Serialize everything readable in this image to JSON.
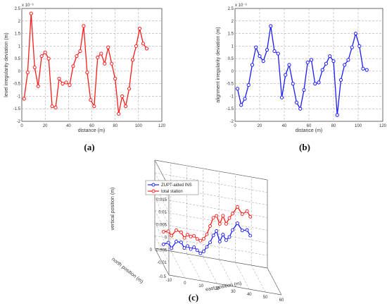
{
  "colors": {
    "red": "#ff1a1a",
    "blue": "#1a1aff",
    "grid": "#999999",
    "axis": "#444444"
  },
  "chart_data": [
    {
      "panel": "a",
      "caption": "(a)",
      "type": "line",
      "xlabel": "distance (m)",
      "ylabel": "level irregularity deviation (m)",
      "exponent": "x 10⁻³",
      "xlim": [
        0,
        120
      ],
      "ylim": [
        -2,
        2.5
      ],
      "xticks": [
        0,
        20,
        40,
        60,
        80,
        100,
        120
      ],
      "yticks": [
        -2,
        -1.5,
        -1,
        -0.5,
        0,
        0.5,
        1,
        1.5,
        2,
        2.5
      ],
      "grid": true,
      "series": [
        {
          "color": "#ff1a1a",
          "x": [
            2,
            5,
            8,
            11,
            14,
            17,
            20,
            23,
            26,
            29,
            32,
            35,
            38,
            41,
            44,
            47,
            50,
            53,
            56,
            59,
            62,
            65,
            68,
            71,
            74,
            77,
            80,
            83,
            86,
            89,
            92,
            95,
            98,
            101,
            104,
            107
          ],
          "y": [
            -1.1,
            -0.05,
            2.3,
            0.15,
            -0.6,
            0.6,
            0.75,
            0.5,
            -1.4,
            -1.45,
            -0.3,
            -0.5,
            -0.45,
            -0.55,
            0.2,
            0.6,
            0.8,
            1.8,
            -0.05,
            -1.15,
            -1.4,
            0.55,
            0.7,
            0.3,
            0.95,
            0.3,
            -0.3,
            -1.7,
            -1.0,
            -1.4,
            -0.7,
            0.45,
            1.0,
            1.7,
            1.1,
            0.9
          ]
        }
      ]
    },
    {
      "panel": "b",
      "caption": "(b)",
      "type": "line",
      "xlabel": "distance (m)",
      "ylabel": "alignment irregularity deviation (m)",
      "exponent": "x 10⁻³",
      "xlim": [
        0,
        120
      ],
      "ylim": [
        -2,
        2.5
      ],
      "xticks": [
        0,
        20,
        40,
        60,
        80,
        100,
        120
      ],
      "yticks": [
        -2,
        -1.5,
        -1,
        -0.5,
        0,
        0.5,
        1,
        1.5,
        2,
        2.5
      ],
      "grid": true,
      "series": [
        {
          "color": "#1a1aff",
          "x": [
            2,
            5,
            8,
            11,
            14,
            17,
            20,
            23,
            26,
            29,
            32,
            35,
            38,
            41,
            44,
            47,
            50,
            53,
            56,
            59,
            62,
            65,
            68,
            71,
            74,
            77,
            80,
            83,
            86,
            89,
            92,
            95,
            98,
            101,
            104,
            107
          ],
          "y": [
            -0.7,
            -1.35,
            -1.1,
            -0.55,
            0.25,
            0.95,
            0.6,
            0.4,
            0.85,
            1.8,
            0.8,
            0.7,
            -1.05,
            -0.15,
            0.25,
            -0.5,
            -1.25,
            -1.5,
            -0.75,
            0.35,
            0.45,
            -0.5,
            -0.45,
            0.05,
            0.3,
            0.6,
            0.4,
            -1.75,
            -0.35,
            0.25,
            0.45,
            0.95,
            1.5,
            1.0,
            0.1,
            0.05
          ]
        }
      ]
    },
    {
      "panel": "c",
      "caption": "(c)",
      "type": "line",
      "xlabel": "east position (m)",
      "ylabel": "north position (m)",
      "zlabel": "vertical position (m)",
      "xlim": [
        -10,
        60
      ],
      "ylim": [
        -0.5,
        0
      ],
      "zlim": [
        -0.015,
        0.02
      ],
      "xticks": [
        -10,
        0,
        10,
        20,
        30,
        40,
        50,
        60
      ],
      "yticks": [
        -0.5,
        0
      ],
      "zticks": [
        -0.01,
        -0.005,
        0,
        0.005,
        0.01,
        0.015,
        0.02
      ],
      "ztick_labels": [
        "-0.01",
        "-0.005",
        "0",
        "0.005",
        "0.01",
        "0.015",
        "0.02"
      ],
      "grid": true,
      "legend": [
        "ZUPT-aided INS",
        "total station"
      ],
      "legend_position": "top-left",
      "series": [
        {
          "name": "ZUPT-aided INS",
          "color": "#1a1aff",
          "x": [
            -9,
            -6,
            -4,
            -1,
            2,
            4,
            6,
            8,
            10,
            12,
            14,
            16,
            18,
            20,
            22,
            24,
            26,
            28,
            30,
            32,
            34,
            37,
            40,
            43,
            45
          ],
          "y": [
            -0.25,
            -0.25,
            -0.25,
            -0.25,
            -0.25,
            -0.25,
            -0.25,
            -0.25,
            -0.25,
            -0.25,
            -0.25,
            -0.25,
            -0.25,
            -0.25,
            -0.25,
            -0.25,
            -0.25,
            -0.25,
            -0.25,
            -0.25,
            -0.25,
            -0.25,
            -0.25,
            -0.25,
            -0.25
          ],
          "z": [
            -0.008,
            -0.007,
            -0.009,
            -0.006,
            -0.006,
            -0.008,
            -0.007,
            -0.008,
            -0.007,
            -0.008,
            -0.009,
            -0.008,
            -0.006,
            -0.004,
            -0.001,
            0.001,
            -0.003,
            0.0,
            -0.002,
            -0.0005,
            0.0025,
            0.0055,
            0.003,
            0.0035,
            0.0015
          ]
        },
        {
          "name": "total station",
          "color": "#ff1a1a",
          "x": [
            -9,
            -6,
            -4,
            -1,
            2,
            4,
            6,
            8,
            10,
            12,
            14,
            16,
            18,
            20,
            22,
            24,
            26,
            28,
            30,
            32,
            34,
            37,
            40,
            43,
            45
          ],
          "y": [
            -0.25,
            -0.25,
            -0.25,
            -0.25,
            -0.25,
            -0.25,
            -0.25,
            -0.25,
            -0.25,
            -0.25,
            -0.25,
            -0.25,
            -0.25,
            -0.25,
            -0.25,
            -0.25,
            -0.25,
            -0.25,
            -0.25,
            -0.25,
            -0.25,
            -0.25,
            -0.25,
            -0.25,
            -0.25
          ],
          "z": [
            -0.003,
            -0.0025,
            -0.004,
            -0.0015,
            -0.002,
            -0.004,
            -0.0025,
            -0.003,
            -0.0025,
            -0.0035,
            -0.004,
            -0.003,
            -0.001,
            0.0025,
            0.006,
            0.007,
            0.004,
            0.0075,
            0.0045,
            0.007,
            0.009,
            0.012,
            0.0095,
            0.011,
            0.009
          ]
        }
      ]
    }
  ]
}
